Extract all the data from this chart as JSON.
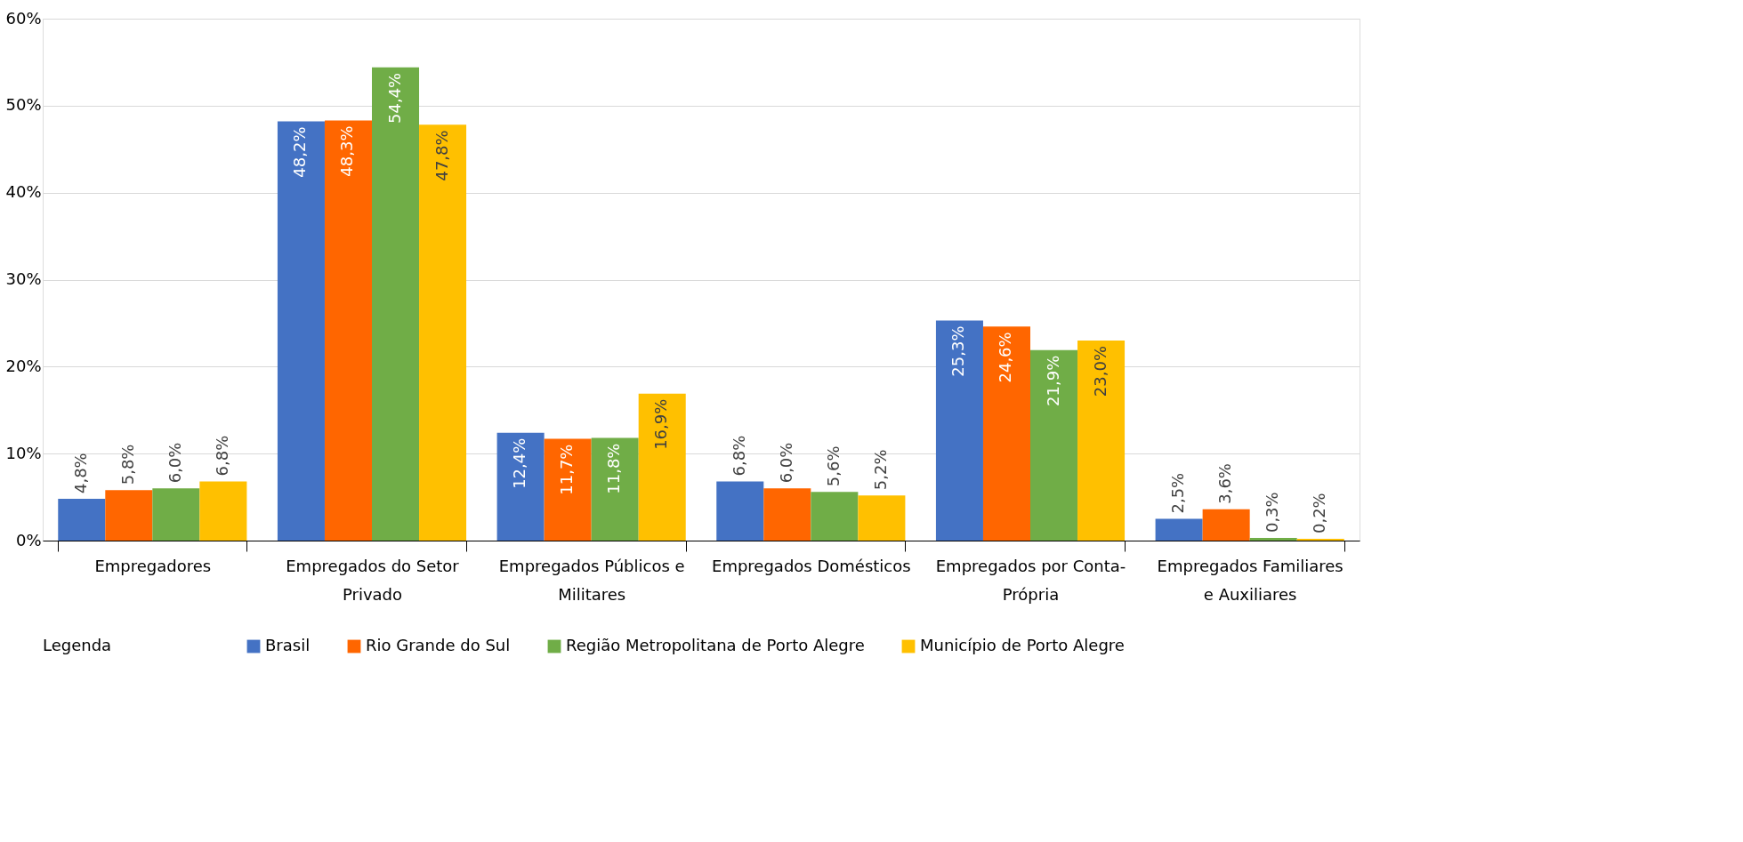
{
  "chart_data": {
    "type": "bar",
    "categories": [
      "Empregadores",
      "Empregados do Setor Privado",
      "Empregados Públicos e Militares",
      "Empregados Domésticos",
      "Empregados por Conta-Própria",
      "Empregados Familiares e Auxiliares"
    ],
    "series": [
      {
        "name": "Brasil",
        "color": "#4472c4",
        "values": [
          4.8,
          48.2,
          12.4,
          6.8,
          25.3,
          2.5
        ],
        "value_labels": [
          "4,8%",
          "48,2%",
          "12,4%",
          "6,8%",
          "25,3%",
          "2,5%"
        ]
      },
      {
        "name": "Rio Grande do Sul",
        "color": "#ff6600",
        "values": [
          5.8,
          48.3,
          11.7,
          6.0,
          24.6,
          3.6
        ],
        "value_labels": [
          "5,8%",
          "48,3%",
          "11,7%",
          "6,0%",
          "24,6%",
          "3,6%"
        ]
      },
      {
        "name": "Região Metropolitana de Porto Alegre",
        "color": "#70ad47",
        "values": [
          6.0,
          54.4,
          11.8,
          5.6,
          21.9,
          0.3
        ],
        "value_labels": [
          "6,0%",
          "54,4%",
          "11,8%",
          "5,6%",
          "21,9%",
          "0,3%"
        ]
      },
      {
        "name": "Município de Porto Alegre",
        "color": "#ffc000",
        "values": [
          6.8,
          47.8,
          16.9,
          5.2,
          23.0,
          0.2
        ],
        "value_labels": [
          "6,8%",
          "47,8%",
          "16,9%",
          "5,2%",
          "23,0%",
          "0,2%"
        ]
      }
    ],
    "legend_title": "Legenda",
    "ylim": [
      0,
      60
    ],
    "yticks": [
      {
        "value": 0,
        "label": "0%"
      },
      {
        "value": 10,
        "label": "10%"
      },
      {
        "value": 20,
        "label": "20%"
      },
      {
        "value": 30,
        "label": "30%"
      },
      {
        "value": 40,
        "label": "40%"
      },
      {
        "value": 50,
        "label": "50%"
      },
      {
        "value": 60,
        "label": "60%"
      }
    ],
    "grid": "y",
    "legend": "bottom"
  }
}
